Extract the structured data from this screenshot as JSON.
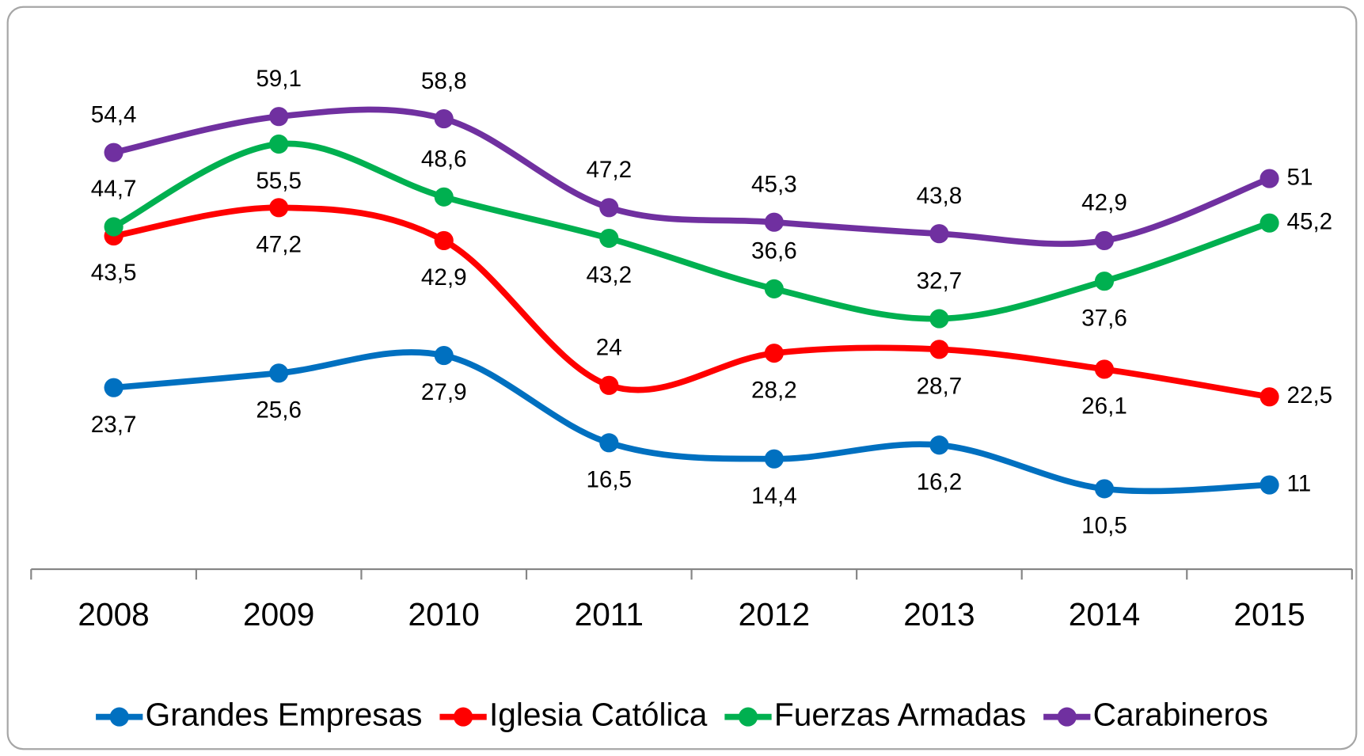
{
  "chart_data": {
    "type": "line",
    "categories": [
      "2008",
      "2009",
      "2010",
      "2011",
      "2012",
      "2013",
      "2014",
      "2015"
    ],
    "ylim": [
      0,
      70
    ],
    "series": [
      {
        "name": "Grandes Empresas",
        "color": "#0070C0",
        "values": [
          23.7,
          25.6,
          27.9,
          16.5,
          14.4,
          16.2,
          10.5,
          11
        ],
        "value_labels": [
          "23,7",
          "25,6",
          "27,9",
          "16,5",
          "14,4",
          "16,2",
          "10,5",
          "11"
        ]
      },
      {
        "name": "Iglesia Católica",
        "color": "#FF0000",
        "values": [
          43.5,
          47.2,
          42.9,
          24,
          28.2,
          28.7,
          26.1,
          22.5
        ],
        "value_labels": [
          "43,5",
          "47,2",
          "42,9",
          "24",
          "28,2",
          "28,7",
          "26,1",
          "22,5"
        ]
      },
      {
        "name": "Fuerzas Armadas",
        "color": "#00B050",
        "values": [
          44.7,
          55.5,
          48.6,
          43.2,
          36.6,
          32.7,
          37.6,
          45.2
        ],
        "value_labels": [
          "44,7",
          "55,5",
          "48,6",
          "43,2",
          "36,6",
          "32,7",
          "37,6",
          "45,2"
        ]
      },
      {
        "name": "Carabineros",
        "color": "#7030A0",
        "values": [
          54.4,
          59.1,
          58.8,
          47.2,
          45.3,
          43.8,
          42.9,
          51
        ],
        "value_labels": [
          "54,4",
          "59,1",
          "58,8",
          "47,2",
          "45,3",
          "43,8",
          "42,9",
          "51"
        ]
      }
    ]
  }
}
